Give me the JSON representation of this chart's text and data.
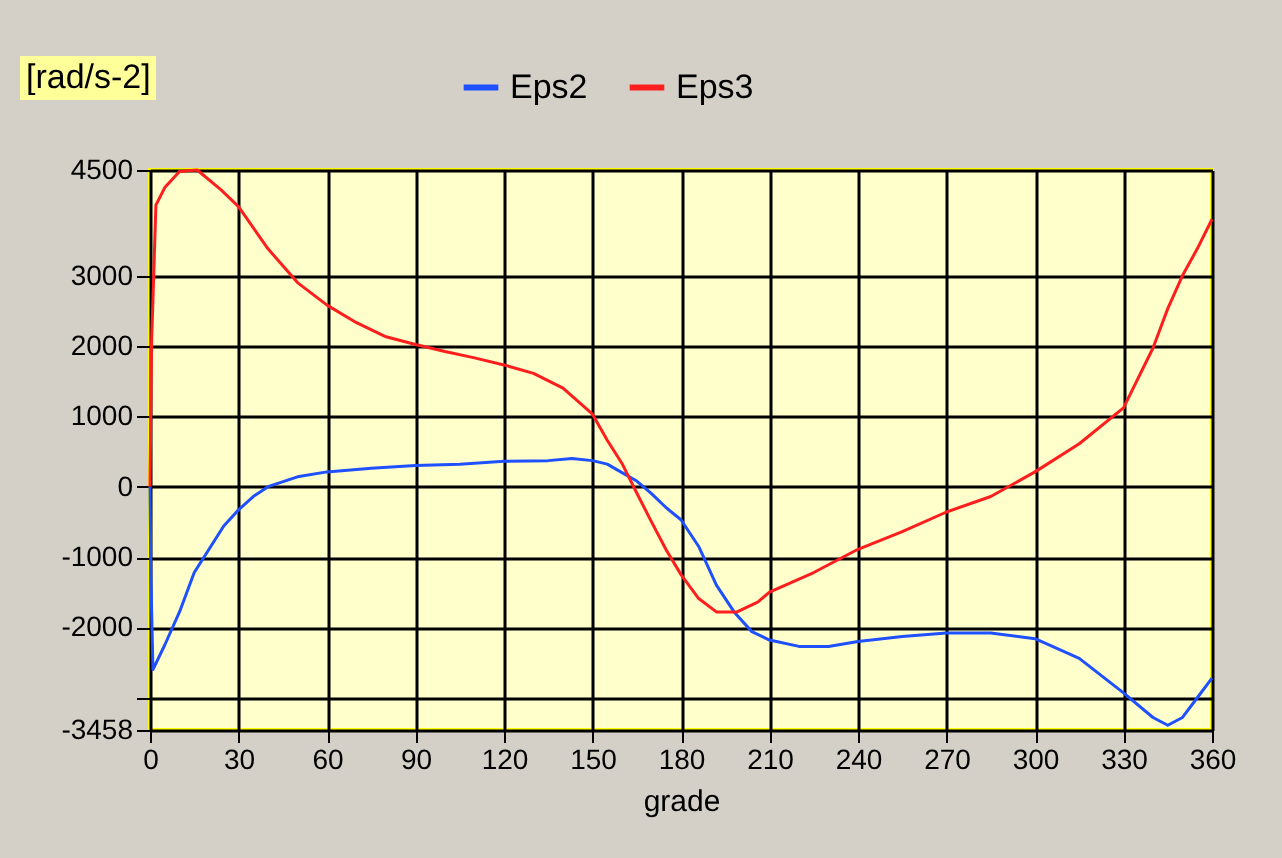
{
  "chart_data": {
    "type": "line",
    "ylabel": "[rad/s-2]",
    "xlabel": "grade",
    "xlim": [
      0,
      360
    ],
    "xticks": [
      0,
      30,
      60,
      90,
      120,
      150,
      180,
      210,
      240,
      270,
      300,
      330,
      360
    ],
    "ylim": [
      -3458,
      4500
    ],
    "yticks": [
      -3458,
      {
        "value": -3000,
        "label": null
      },
      -2000,
      -1000,
      0,
      1000,
      2000,
      3000,
      4500
    ],
    "grid": true,
    "legend": "top",
    "line_style": "solid",
    "series": [
      {
        "name": "Eps2",
        "color": "#1e50ff",
        "x": [
          0,
          0.3,
          1,
          5,
          10,
          15,
          20,
          25,
          30,
          35,
          40,
          50,
          60,
          75,
          90,
          105,
          120,
          135,
          143,
          150,
          155,
          160,
          165,
          170,
          175,
          180,
          186,
          192,
          198,
          204,
          210,
          220,
          230,
          240,
          255,
          270,
          285,
          300,
          315,
          330,
          340,
          345,
          350,
          355,
          360
        ],
        "values": [
          0,
          -1300,
          -2600,
          -2250,
          -1780,
          -1220,
          -890,
          -560,
          -330,
          -140,
          0,
          140,
          210,
          260,
          300,
          320,
          360,
          370,
          400,
          370,
          320,
          200,
          80,
          -100,
          -300,
          -470,
          -850,
          -1400,
          -1780,
          -2060,
          -2180,
          -2270,
          -2270,
          -2200,
          -2130,
          -2080,
          -2080,
          -2160,
          -2440,
          -2930,
          -3280,
          -3390,
          -3280,
          -3000,
          -2720
        ]
      },
      {
        "name": "Eps3",
        "color": "#ff1e1e",
        "x": [
          0,
          0.5,
          2,
          5,
          10,
          16,
          24,
          30,
          40,
          50,
          60,
          70,
          80,
          90,
          100,
          110,
          120,
          130,
          140,
          150,
          155,
          160,
          165,
          170,
          175,
          180,
          186,
          192,
          199,
          206,
          210,
          225,
          240,
          255,
          270,
          285,
          300,
          315,
          330,
          340,
          345,
          350,
          355,
          360
        ],
        "values": [
          0,
          2000,
          4000,
          4250,
          4480,
          4500,
          4220,
          3980,
          3380,
          2900,
          2580,
          2330,
          2130,
          2020,
          1920,
          1830,
          1730,
          1610,
          1400,
          1030,
          660,
          330,
          -90,
          -500,
          -900,
          -1250,
          -1590,
          -1780,
          -1780,
          -1640,
          -1500,
          -1220,
          -890,
          -640,
          -360,
          -140,
          210,
          610,
          1120,
          1970,
          2530,
          3000,
          3380,
          3800
        ]
      }
    ]
  }
}
